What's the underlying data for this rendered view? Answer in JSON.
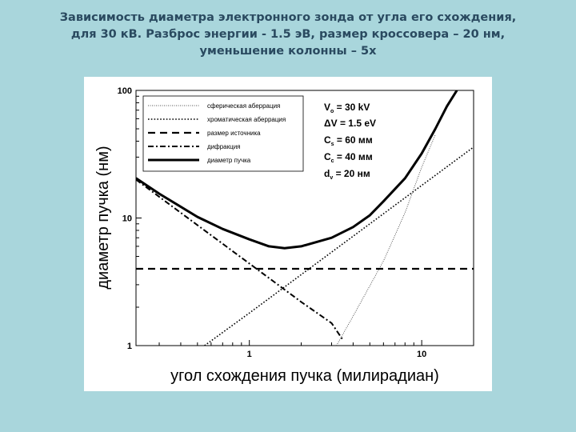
{
  "title": {
    "line1": "Зависимость диаметра электронного зонда от угла его схождения,",
    "line2": "для 30 кВ. Разброс энергии - 1.5 эВ, размер кроссовера – 20 нм,",
    "line3": "уменьшение колонны – 5х"
  },
  "chart_data": {
    "type": "line",
    "xlabel": "угол схождения пучка (милирадиан)",
    "ylabel": "диаметр пучка (нм)",
    "x_scale": "log",
    "y_scale": "log",
    "xlim": [
      0.22,
      20
    ],
    "ylim": [
      1,
      100
    ],
    "x_ticks": [
      {
        "v": 1,
        "label": "1"
      },
      {
        "v": 10,
        "label": "10"
      }
    ],
    "y_ticks": [
      {
        "v": 1,
        "label": "1"
      },
      {
        "v": 10,
        "label": "10"
      },
      {
        "v": 100,
        "label": "100"
      }
    ],
    "series": [
      {
        "name": "сферическая аберрация",
        "style": "dotted-thin",
        "x": [
          3.2,
          4.0,
          6.0,
          8.0,
          10.0,
          12.0
        ],
        "y": [
          1.0,
          1.7,
          4.6,
          11.0,
          25.0,
          45.0
        ]
      },
      {
        "name": "хроматическая аберрация",
        "style": "dotted",
        "x": [
          0.55,
          1.0,
          2.0,
          5.0,
          10.0,
          20.0
        ],
        "y": [
          1.0,
          1.8,
          3.6,
          9.0,
          18.0,
          36.0
        ]
      },
      {
        "name": "размер источника",
        "style": "dashed",
        "x": [
          0.22,
          20.0
        ],
        "y": [
          4.0,
          4.0
        ]
      },
      {
        "name": "дифракция",
        "style": "dashdot",
        "x": [
          0.22,
          0.5,
          1.0,
          2.0,
          3.0,
          3.5
        ],
        "y": [
          20.0,
          8.8,
          4.4,
          2.2,
          1.5,
          1.1
        ]
      },
      {
        "name": "диаметр пучка",
        "style": "solid-thick",
        "x": [
          0.22,
          0.3,
          0.5,
          0.7,
          1.0,
          1.3,
          1.6,
          2.0,
          3.0,
          4.0,
          5.0,
          6.0,
          8.0,
          10.0,
          12.0,
          14.0,
          16.0
        ],
        "y": [
          20.5,
          15.5,
          10.2,
          8.2,
          6.8,
          6.0,
          5.8,
          6.0,
          7.0,
          8.5,
          10.5,
          13.5,
          20.5,
          32.0,
          50.0,
          75.0,
          100.0
        ]
      }
    ],
    "legend_position": "top-left",
    "grid": false
  },
  "params": {
    "vo": "V",
    "vo_sub": "o",
    "vo_val": " = 30 kV",
    "dv": "ΔV = 1.5 eV",
    "cs": "C",
    "cs_sub": "s",
    "cs_val": " = 60 мм",
    "cc": "C",
    "cc_sub": "c",
    "cc_val": " = 40 мм",
    "dv2": "d",
    "dv2_sub": "v",
    "dv2_val": " = 20 нм"
  }
}
